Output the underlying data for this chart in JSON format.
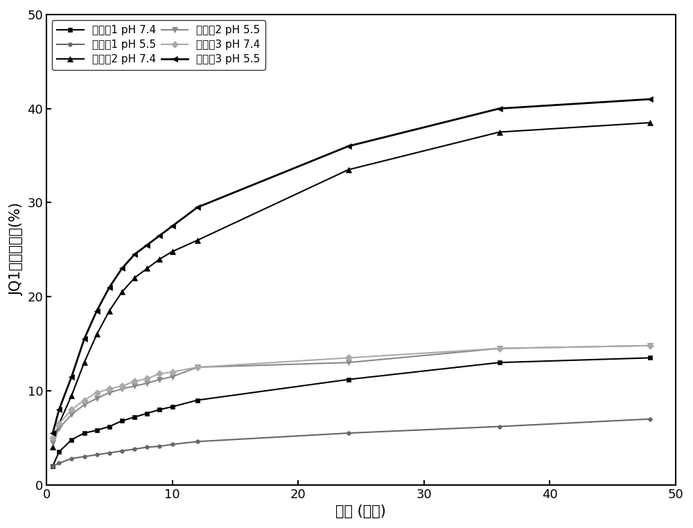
{
  "title": "",
  "xlabel": "时间 (小时)",
  "ylabel": "JQ1累计释放率(%)",
  "xlim": [
    0,
    50
  ],
  "ylim": [
    0,
    50
  ],
  "xticks": [
    0,
    10,
    20,
    30,
    40,
    50
  ],
  "yticks": [
    0,
    10,
    20,
    30,
    40,
    50
  ],
  "series": [
    {
      "label": "实施例1 pH 7.4",
      "color": "#000000",
      "marker": "s",
      "linestyle": "-",
      "linewidth": 1.5,
      "markersize": 5,
      "x": [
        0.5,
        1,
        2,
        3,
        4,
        5,
        6,
        7,
        8,
        9,
        10,
        12,
        24,
        36,
        48
      ],
      "y": [
        2.0,
        3.5,
        4.8,
        5.5,
        5.8,
        6.2,
        6.8,
        7.2,
        7.6,
        8.0,
        8.3,
        9.0,
        11.2,
        13.0,
        13.5
      ]
    },
    {
      "label": "实施例1 pH 5.5",
      "color": "#666666",
      "marker": "o",
      "linestyle": "-",
      "linewidth": 1.5,
      "markersize": 4,
      "x": [
        0.5,
        1,
        2,
        3,
        4,
        5,
        6,
        7,
        8,
        9,
        10,
        12,
        24,
        36,
        48
      ],
      "y": [
        2.0,
        2.3,
        2.8,
        3.0,
        3.2,
        3.4,
        3.6,
        3.8,
        4.0,
        4.1,
        4.3,
        4.6,
        5.5,
        6.2,
        7.0
      ]
    },
    {
      "label": "实施例2 pH 7.4",
      "color": "#000000",
      "marker": "^",
      "linestyle": "-",
      "linewidth": 1.5,
      "markersize": 6,
      "x": [
        0.5,
        1,
        2,
        3,
        4,
        5,
        6,
        7,
        8,
        9,
        10,
        12,
        24,
        36,
        48
      ],
      "y": [
        4.0,
        6.5,
        9.5,
        13.0,
        16.0,
        18.5,
        20.5,
        22.0,
        23.0,
        24.0,
        24.8,
        26.0,
        33.5,
        37.5,
        38.5
      ]
    },
    {
      "label": "实施例2 pH 5.5",
      "color": "#888888",
      "marker": "v",
      "linestyle": "-",
      "linewidth": 1.5,
      "markersize": 6,
      "x": [
        0.5,
        1,
        2,
        3,
        4,
        5,
        6,
        7,
        8,
        9,
        10,
        12,
        24,
        36,
        48
      ],
      "y": [
        4.5,
        6.0,
        7.5,
        8.5,
        9.2,
        9.8,
        10.2,
        10.5,
        10.8,
        11.2,
        11.5,
        12.5,
        13.0,
        14.5,
        14.8
      ]
    },
    {
      "label": "实施例3 pH 7.4",
      "color": "#aaaaaa",
      "marker": "D",
      "linestyle": "-",
      "linewidth": 1.5,
      "markersize": 5,
      "x": [
        0.5,
        1,
        2,
        3,
        4,
        5,
        6,
        7,
        8,
        9,
        10,
        12,
        24,
        36,
        48
      ],
      "y": [
        5.0,
        6.5,
        8.0,
        9.0,
        9.8,
        10.2,
        10.5,
        11.0,
        11.3,
        11.8,
        12.0,
        12.5,
        13.5,
        14.5,
        14.8
      ]
    },
    {
      "label": "实施例3 pH 5.5",
      "color": "#000000",
      "marker": "<",
      "linestyle": "-",
      "linewidth": 2.0,
      "markersize": 6,
      "x": [
        0.5,
        1,
        2,
        3,
        4,
        5,
        6,
        7,
        8,
        9,
        10,
        12,
        24,
        36,
        48
      ],
      "y": [
        5.5,
        8.0,
        11.5,
        15.5,
        18.5,
        21.0,
        23.0,
        24.5,
        25.5,
        26.5,
        27.5,
        29.5,
        36.0,
        40.0,
        41.0
      ]
    }
  ],
  "legend_order": [
    0,
    1,
    2,
    3,
    4,
    5
  ],
  "legend_loc": "upper left",
  "legend_fontsize": 11,
  "axis_fontsize": 15,
  "tick_fontsize": 13,
  "background_color": "#ffffff"
}
